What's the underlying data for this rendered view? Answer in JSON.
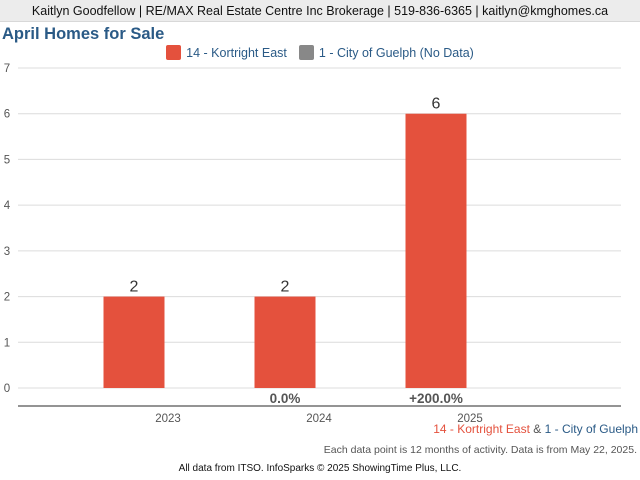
{
  "header": {
    "contact": "Kaitlyn Goodfellow | RE/MAX Real Estate Centre Inc Brokerage | 519-836-6365 | kaitlyn@kmghomes.ca"
  },
  "legend": {
    "items": [
      {
        "label": "14 - Kortright East",
        "color": "#e4513d"
      },
      {
        "label": "1 - City of Guelph (No Data)",
        "color": "#888888"
      }
    ]
  },
  "chart_data": {
    "type": "bar",
    "title": "April Homes for Sale",
    "categories": [
      "2023",
      "2024",
      "2025"
    ],
    "series": [
      {
        "name": "14 - Kortright East",
        "values": [
          2,
          2,
          6
        ],
        "color": "#e4513d"
      }
    ],
    "data_labels": [
      "2",
      "2",
      "6"
    ],
    "change_labels": [
      "",
      "0.0%",
      "+200.0%"
    ],
    "ylim": [
      0,
      7
    ],
    "yticks": [
      "0",
      "1",
      "2",
      "3",
      "4",
      "5",
      "6",
      "7"
    ],
    "grid": true,
    "legend_position": "top-center"
  },
  "footer": {
    "area1": "14 - Kortright East",
    "amp": " & ",
    "area2": "1 - City of Guelph",
    "note": "Each data point is 12 months of activity. Data is from May 22, 2025.",
    "source": "All data from ITSO. InfoSparks © 2025 ShowingTime Plus, LLC."
  }
}
